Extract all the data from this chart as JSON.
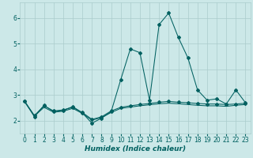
{
  "xlabel": "Humidex (Indice chaleur)",
  "bg_color": "#cce8e8",
  "grid_color": "#aacccc",
  "line_color": "#006060",
  "xlim": [
    -0.5,
    23.5
  ],
  "ylim": [
    1.5,
    6.6
  ],
  "yticks": [
    2,
    3,
    4,
    5,
    6
  ],
  "xticks": [
    0,
    1,
    2,
    3,
    4,
    5,
    6,
    7,
    8,
    9,
    10,
    11,
    12,
    13,
    14,
    15,
    16,
    17,
    18,
    19,
    20,
    21,
    22,
    23
  ],
  "series1_x": [
    0,
    1,
    2,
    3,
    4,
    5,
    6,
    7,
    8,
    9,
    10,
    11,
    12,
    13,
    14,
    15,
    16,
    17,
    18,
    19,
    20,
    21,
    22,
    23
  ],
  "series1_y": [
    2.75,
    2.15,
    2.6,
    2.35,
    2.4,
    2.55,
    2.3,
    1.9,
    2.1,
    2.35,
    3.6,
    4.8,
    4.65,
    2.8,
    5.75,
    6.2,
    5.25,
    4.45,
    3.2,
    2.8,
    2.85,
    2.65,
    3.2,
    2.7
  ],
  "series2_x": [
    0,
    1,
    2,
    3,
    4,
    5,
    6,
    7,
    8,
    9,
    10,
    11,
    12,
    13,
    14,
    15,
    16,
    17,
    18,
    19,
    20,
    21,
    22,
    23
  ],
  "series2_y": [
    2.75,
    2.2,
    2.58,
    2.38,
    2.42,
    2.52,
    2.32,
    2.05,
    2.15,
    2.38,
    2.52,
    2.58,
    2.63,
    2.67,
    2.72,
    2.75,
    2.72,
    2.7,
    2.67,
    2.65,
    2.65,
    2.63,
    2.65,
    2.68
  ],
  "series3_x": [
    0,
    1,
    2,
    3,
    4,
    5,
    6,
    7,
    8,
    9,
    10,
    11,
    12,
    13,
    14,
    15,
    16,
    17,
    18,
    19,
    20,
    21,
    22,
    23
  ],
  "series3_y": [
    2.72,
    2.18,
    2.52,
    2.33,
    2.37,
    2.48,
    2.28,
    2.02,
    2.12,
    2.32,
    2.48,
    2.53,
    2.58,
    2.62,
    2.66,
    2.68,
    2.66,
    2.63,
    2.6,
    2.58,
    2.58,
    2.56,
    2.6,
    2.63
  ],
  "xlabel_fontsize": 6.5,
  "tick_fontsize": 5.5
}
